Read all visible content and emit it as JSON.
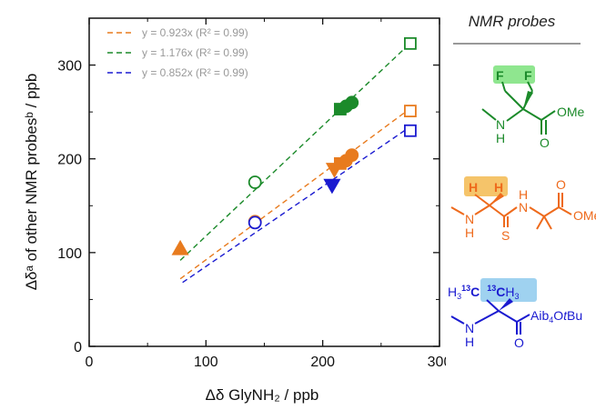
{
  "chart_data": {
    "type": "scatter",
    "xlabel": "Δδ GlyNH₂ / ppb",
    "ylabel": "Δδᵃ of other NMR probesᵇ / ppb",
    "xlim": [
      0,
      300
    ],
    "ylim": [
      0,
      350
    ],
    "xticks": [
      0,
      100,
      200,
      300
    ],
    "yticks": [
      0,
      100,
      200,
      300
    ],
    "legend_position": "top-left",
    "series": [
      {
        "color": "#e87b1e",
        "fit_label": "y = 0.923x (R² = 0.99)",
        "slope": 0.923,
        "fit_x": [
          78,
          275
        ],
        "points": [
          {
            "x": 78,
            "y": 104,
            "marker": "triangle-up",
            "filled": true
          },
          {
            "x": 142,
            "y": 133,
            "marker": "circle",
            "filled": false
          },
          {
            "x": 210,
            "y": 189,
            "marker": "triangle-down",
            "filled": true
          },
          {
            "x": 215,
            "y": 195,
            "marker": "square",
            "filled": true
          },
          {
            "x": 220,
            "y": 198,
            "marker": "circle",
            "filled": true
          },
          {
            "x": 225,
            "y": 204,
            "marker": "circle",
            "filled": true
          },
          {
            "x": 275,
            "y": 251,
            "marker": "square",
            "filled": false
          }
        ]
      },
      {
        "color": "#1b8a2a",
        "fit_label": "y = 1.176x (R² = 0.99)",
        "slope": 1.176,
        "fit_x": [
          78,
          275
        ],
        "points": [
          {
            "x": 142,
            "y": 175,
            "marker": "circle",
            "filled": false
          },
          {
            "x": 215,
            "y": 253,
            "marker": "square",
            "filled": true
          },
          {
            "x": 220,
            "y": 256,
            "marker": "circle",
            "filled": true
          },
          {
            "x": 225,
            "y": 260,
            "marker": "circle",
            "filled": true
          },
          {
            "x": 275,
            "y": 323,
            "marker": "square",
            "filled": false
          }
        ]
      },
      {
        "color": "#1a1ad0",
        "fit_label": "y = 0.852x (R² = 0.99)",
        "slope": 0.852,
        "fit_x": [
          80,
          275
        ],
        "points": [
          {
            "x": 142,
            "y": 132,
            "marker": "circle",
            "filled": false
          },
          {
            "x": 208,
            "y": 172,
            "marker": "triangle-down",
            "filled": true
          },
          {
            "x": 275,
            "y": 230,
            "marker": "square",
            "filled": false
          }
        ]
      }
    ]
  },
  "panel": {
    "title": "NMR probes",
    "probe1": {
      "f1": "F",
      "f2": "F",
      "nh": "N",
      "h": "H",
      "o": "O",
      "ome": "OMe",
      "color": "#1b8a2a",
      "highlight": "#8fe68f"
    },
    "probe2": {
      "h1": "H",
      "h2": "H",
      "nh": "N",
      "h": "H",
      "nh2": "N",
      "h2b": "H",
      "s": "S",
      "o": "O",
      "ome": "OMe",
      "color": "#ee6a1c",
      "highlight": "#f5c46a"
    },
    "probe3": {
      "h3a": "H",
      "sub3a": "3",
      "sup13a": "13",
      "ca": "C",
      "sup13b": "13",
      "cb": "C",
      "h3b": "H",
      "sub3b": "3",
      "nh": "N",
      "h": "H",
      "o": "O",
      "aib": "Aib",
      "sub4": "4",
      "otbu": "O",
      "t": "t",
      "bu": "Bu",
      "color": "#1a1ad0",
      "highlight": "#9fd2f0"
    }
  }
}
